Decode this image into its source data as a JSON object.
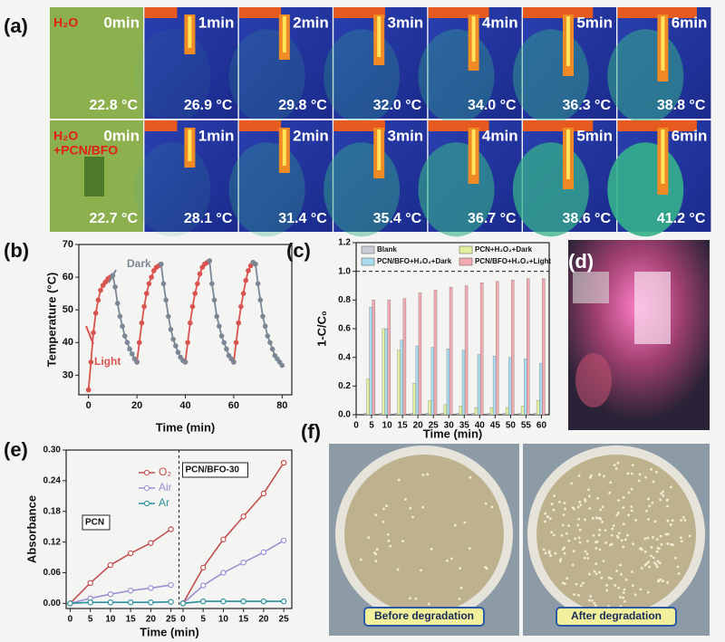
{
  "panel_labels": [
    "(a)",
    "(b)",
    "(c)",
    "(d)",
    "(e)",
    "(f)"
  ],
  "thermal": {
    "rows": [
      {
        "label": [
          "H₂O"
        ],
        "times": [
          "0min",
          "1min",
          "2min",
          "3min",
          "4min",
          "5min",
          "6min"
        ],
        "temps": [
          "22.8 °C",
          "26.9 °C",
          "29.8 °C",
          "32.0 °C",
          "34.0 °C",
          "36.3 °C",
          "38.8 °C"
        ]
      },
      {
        "label": [
          "H₂O",
          "+PCN/BFO"
        ],
        "times": [
          "0min",
          "1min",
          "2min",
          "3min",
          "4min",
          "5min",
          "6min"
        ],
        "temps": [
          "22.7 °C",
          "28.1 °C",
          "31.4 °C",
          "35.4 °C",
          "36.7 °C",
          "38.6 °C",
          "41.2 °C"
        ]
      }
    ]
  },
  "chart_data": [
    {
      "type": "line",
      "xlabel": "Time (min)",
      "ylabel": "Temperature (°C)",
      "x": [
        0,
        1,
        2,
        3,
        4,
        5,
        6,
        7,
        8,
        9,
        10,
        11,
        12,
        13,
        14,
        15,
        16,
        17,
        18,
        19,
        20,
        21,
        22,
        23,
        24,
        25,
        26,
        27,
        28,
        29,
        30,
        31,
        32,
        33,
        34,
        35,
        36,
        37,
        38,
        39,
        40,
        41,
        42,
        43,
        44,
        45,
        46,
        47,
        48,
        49,
        50,
        51,
        52,
        53,
        54,
        55,
        56,
        57,
        58,
        59,
        60,
        61,
        62,
        63,
        64,
        65,
        66,
        67,
        68,
        69,
        70,
        71,
        72,
        73,
        74,
        75,
        76,
        77,
        78,
        79,
        80
      ],
      "series": [
        {
          "name": "Light",
          "color": "#d9534f",
          "values": [
            25.5,
            34,
            43,
            49,
            53,
            56,
            57.5,
            58.5,
            59.5,
            60,
            60.5,
            null,
            null,
            null,
            null,
            null,
            null,
            null,
            null,
            null,
            34,
            40,
            46,
            51,
            55,
            58,
            60,
            62,
            63,
            63.5,
            64,
            null,
            null,
            null,
            null,
            null,
            null,
            null,
            null,
            null,
            34,
            40,
            46,
            51,
            55,
            58,
            61,
            63,
            64,
            64.5,
            65,
            null,
            null,
            null,
            null,
            null,
            null,
            null,
            null,
            null,
            34,
            40,
            46,
            51,
            55,
            59,
            62,
            63.5,
            64.5,
            null,
            null,
            null,
            null,
            null,
            null,
            null,
            null,
            null,
            null,
            null,
            null
          ]
        },
        {
          "name": "Dark",
          "color": "#7c8796",
          "values": [
            null,
            null,
            null,
            null,
            null,
            null,
            null,
            null,
            null,
            null,
            60.5,
            57,
            52,
            48,
            45,
            42,
            40,
            38,
            36.5,
            35,
            34,
            null,
            null,
            null,
            null,
            null,
            null,
            null,
            null,
            null,
            64,
            58,
            53,
            48,
            44,
            41,
            39,
            37,
            35.5,
            34.5,
            34,
            null,
            null,
            null,
            null,
            null,
            null,
            null,
            null,
            null,
            65,
            58,
            53,
            48,
            45,
            42,
            40,
            38,
            36,
            35,
            34,
            null,
            null,
            null,
            null,
            null,
            null,
            null,
            64.5,
            64,
            58,
            53,
            48,
            45,
            42,
            40,
            38,
            36,
            35,
            34,
            33
          ]
        }
      ],
      "xlim": [
        -4,
        84
      ],
      "xticks": [
        0,
        20,
        40,
        60,
        80
      ],
      "ylim": [
        24,
        70
      ],
      "yticks": [
        30,
        40,
        50,
        60,
        70
      ]
    },
    {
      "type": "bar",
      "xlabel": "Time (min)",
      "ylabel": "1-C/C₀",
      "x": [
        5,
        10,
        15,
        20,
        25,
        30,
        35,
        40,
        45,
        50,
        55,
        60
      ],
      "series": [
        {
          "name": "Blank",
          "color": "#c9ccd6",
          "values": [
            0.01,
            0.01,
            0.01,
            0.01,
            0.01,
            0.01,
            0.01,
            0.01,
            0.01,
            0.01,
            0.01,
            0.01
          ]
        },
        {
          "name": "PCN+H₂O₂+Dark",
          "color": "#e3f0a0",
          "values": [
            0.25,
            0.6,
            0.45,
            0.22,
            0.1,
            0.07,
            0.06,
            0.05,
            0.05,
            0.05,
            0.06,
            0.1
          ]
        },
        {
          "name": "PCN/BFO+H₂O₂+Dark",
          "color": "#a9dcf0",
          "values": [
            0.75,
            0.6,
            0.52,
            0.48,
            0.47,
            0.46,
            0.45,
            0.42,
            0.41,
            0.4,
            0.39,
            0.36
          ]
        },
        {
          "name": "PCN/BFO+H₂O₂+Light",
          "color": "#f2a9b0",
          "values": [
            0.8,
            0.8,
            0.81,
            0.85,
            0.87,
            0.89,
            0.9,
            0.92,
            0.93,
            0.94,
            0.95,
            0.95
          ]
        }
      ],
      "hline": 1,
      "xlim": [
        0,
        62.5
      ],
      "xticks": [
        0,
        5,
        10,
        15,
        20,
        25,
        30,
        35,
        40,
        45,
        50,
        55,
        60
      ],
      "ylim": [
        0,
        1.2
      ],
      "yticks": [
        {
          "value": 0,
          "label": "0.0"
        },
        0.2,
        0.4,
        0.6,
        0.8,
        {
          "value": 1,
          "label": "1.0"
        },
        1.2
      ]
    },
    {
      "type": "line-panels",
      "xlabel": "Time (min)",
      "ylabel": "Absorbance",
      "x": [
        0,
        5,
        10,
        15,
        20,
        25
      ],
      "series": [
        {
          "name": "O₂",
          "color": "#c0504d"
        },
        {
          "name": "Air",
          "color": "#9b8fd0"
        },
        {
          "name": "Ar",
          "color": "#2a8f9c"
        }
      ],
      "panels": [
        {
          "title": "PCN",
          "values": [
            [
              0,
              0.04,
              0.075,
              0.098,
              0.118,
              0.145
            ],
            [
              0,
              0.01,
              0.018,
              0.025,
              0.03,
              0.036
            ],
            [
              0,
              0.002,
              0.002,
              0.002,
              0.002,
              0.003
            ]
          ]
        },
        {
          "title": "PCN/BFO-30",
          "values": [
            [
              0,
              0.07,
              0.125,
              0.17,
              0.215,
              0.275
            ],
            [
              0,
              0.035,
              0.06,
              0.08,
              0.1,
              0.123
            ],
            [
              0,
              0.004,
              0.004,
              0.004,
              0.004,
              0.004
            ]
          ]
        }
      ],
      "xlim": [
        -1,
        27
      ],
      "xticks": [
        0,
        5,
        10,
        15,
        20,
        25
      ],
      "ylim": [
        -0.01,
        0.3
      ],
      "yticks": [
        {
          "value": 0,
          "label": "0.00"
        },
        0.06,
        0.12,
        0.18,
        0.24,
        {
          "value": 0.3,
          "label": "0.30"
        }
      ]
    }
  ],
  "petri": {
    "labels": [
      "Before degradation",
      "After degradation"
    ]
  }
}
